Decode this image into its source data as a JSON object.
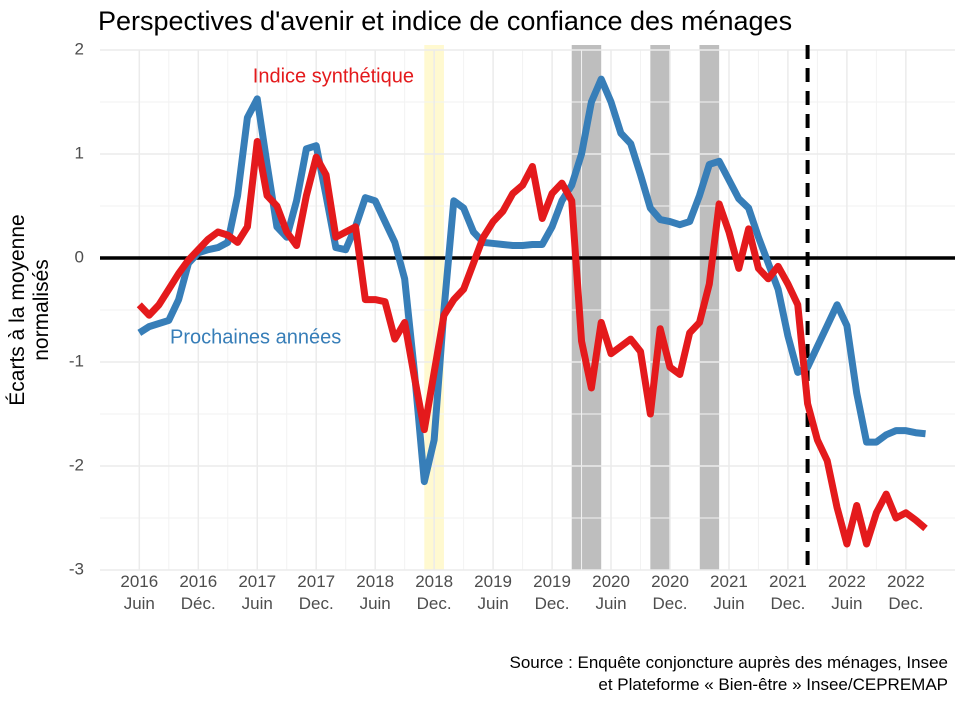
{
  "chart_data": {
    "type": "line",
    "title": "Perspectives d'avenir et indice de confiance des ménages",
    "y_label": "Écarts à la moyenne\nnormalisés",
    "source": "Source : Enquête conjoncture auprès des ménages, Insee\net Plateforme « Bien-être » Insee/CEPREMAP",
    "xlim": [
      "2016-02",
      "2023-05"
    ],
    "ylim": [
      -3,
      2
    ],
    "yticks": [
      -3,
      -2,
      -1,
      0,
      1,
      2
    ],
    "xticks": [
      {
        "value": "2016-06",
        "label": "2016\nJuin"
      },
      {
        "value": "2016-12",
        "label": "2016\nDéc."
      },
      {
        "value": "2017-06",
        "label": "2017\nJuin"
      },
      {
        "value": "2017-12",
        "label": "2017\nDec."
      },
      {
        "value": "2018-06",
        "label": "2018\nJuin"
      },
      {
        "value": "2018-12",
        "label": "2018\nDec."
      },
      {
        "value": "2019-06",
        "label": "2019\nJuin"
      },
      {
        "value": "2019-12",
        "label": "2019\nDec."
      },
      {
        "value": "2020-06",
        "label": "2020\nJuin"
      },
      {
        "value": "2020-12",
        "label": "2020\nDec."
      },
      {
        "value": "2021-06",
        "label": "2021\nJuin"
      },
      {
        "value": "2021-12",
        "label": "2021\nDec."
      },
      {
        "value": "2022-06",
        "label": "2022\nJuin"
      },
      {
        "value": "2022-12",
        "label": "2022\nDec."
      }
    ],
    "grid": true,
    "bands": [
      {
        "start": "2018-11",
        "end": "2019-01",
        "color": "#fff9d0"
      },
      {
        "start": "2020-02",
        "end": "2020-05",
        "color": "#bebebe"
      },
      {
        "start": "2020-10",
        "end": "2020-12",
        "color": "#bebebe"
      },
      {
        "start": "2021-03",
        "end": "2021-05",
        "color": "#bebebe"
      }
    ],
    "vline": {
      "x": "2022-02",
      "color": "#000000"
    },
    "hline": {
      "y": 0,
      "color": "#000000"
    },
    "x": [
      "2016-06",
      "2016-07",
      "2016-08",
      "2016-09",
      "2016-10",
      "2016-11",
      "2016-12",
      "2017-01",
      "2017-02",
      "2017-03",
      "2017-04",
      "2017-05",
      "2017-06",
      "2017-07",
      "2017-08",
      "2017-09",
      "2017-10",
      "2017-11",
      "2017-12",
      "2018-01",
      "2018-02",
      "2018-03",
      "2018-04",
      "2018-05",
      "2018-06",
      "2018-07",
      "2018-08",
      "2018-09",
      "2018-10",
      "2018-11",
      "2018-12",
      "2019-01",
      "2019-02",
      "2019-03",
      "2019-04",
      "2019-05",
      "2019-06",
      "2019-07",
      "2019-08",
      "2019-09",
      "2019-10",
      "2019-11",
      "2019-12",
      "2020-01",
      "2020-02",
      "2020-03",
      "2020-04",
      "2020-05",
      "2020-06",
      "2020-07",
      "2020-08",
      "2020-09",
      "2020-10",
      "2020-11",
      "2020-12",
      "2021-01",
      "2021-02",
      "2021-03",
      "2021-04",
      "2021-05",
      "2021-06",
      "2021-07",
      "2021-08",
      "2021-09",
      "2021-10",
      "2021-11",
      "2021-12",
      "2022-01",
      "2022-02",
      "2022-03",
      "2022-04",
      "2022-05",
      "2022-06",
      "2022-07",
      "2022-08",
      "2022-09",
      "2022-10",
      "2022-11",
      "2022-12",
      "2023-01",
      "2023-02"
    ],
    "series": [
      {
        "name": "Prochaines années",
        "color": "#377eb8",
        "values": [
          -0.72,
          -0.66,
          -0.63,
          -0.6,
          -0.4,
          -0.05,
          0.05,
          0.08,
          0.1,
          0.15,
          0.6,
          1.35,
          1.53,
          0.9,
          0.3,
          0.2,
          0.55,
          1.05,
          1.08,
          0.6,
          0.1,
          0.08,
          0.3,
          0.58,
          0.55,
          0.35,
          0.15,
          -0.2,
          -1.1,
          -2.15,
          -1.75,
          -0.5,
          0.55,
          0.48,
          0.25,
          0.15,
          0.14,
          0.13,
          0.12,
          0.12,
          0.13,
          0.13,
          0.3,
          0.55,
          0.7,
          1.0,
          1.5,
          1.72,
          1.5,
          1.2,
          1.1,
          0.8,
          0.48,
          0.37,
          0.35,
          0.32,
          0.35,
          0.6,
          0.9,
          0.93,
          0.75,
          0.57,
          0.48,
          0.2,
          -0.05,
          -0.3,
          -0.75,
          -1.1,
          -1.05,
          -0.85,
          -0.65,
          -0.45,
          -0.65,
          -1.3,
          -1.77,
          -1.77,
          -1.7,
          -1.66,
          -1.66,
          -1.68,
          -1.69
        ]
      },
      {
        "name": "Indice synthétique",
        "color": "#e41a1c",
        "values": [
          -0.45,
          -0.55,
          -0.45,
          -0.3,
          -0.15,
          -0.02,
          0.08,
          0.18,
          0.25,
          0.22,
          0.15,
          0.3,
          1.12,
          0.6,
          0.5,
          0.25,
          0.12,
          0.6,
          0.97,
          0.8,
          0.2,
          0.25,
          0.3,
          -0.4,
          -0.4,
          -0.42,
          -0.78,
          -0.62,
          -1.15,
          -1.65,
          -1.1,
          -0.55,
          -0.4,
          -0.3,
          -0.05,
          0.2,
          0.35,
          0.45,
          0.62,
          0.7,
          0.88,
          0.38,
          0.62,
          0.72,
          0.55,
          -0.8,
          -1.25,
          -0.62,
          -0.92,
          -0.85,
          -0.78,
          -0.9,
          -1.5,
          -0.68,
          -1.05,
          -1.12,
          -0.72,
          -0.62,
          -0.25,
          0.52,
          0.25,
          -0.1,
          0.28,
          -0.1,
          -0.2,
          -0.08,
          -0.25,
          -0.45,
          -1.4,
          -1.75,
          -1.95,
          -2.4,
          -2.75,
          -2.38,
          -2.75,
          -2.45,
          -2.27,
          -2.5,
          -2.45,
          -2.52,
          -2.6
        ]
      }
    ]
  }
}
